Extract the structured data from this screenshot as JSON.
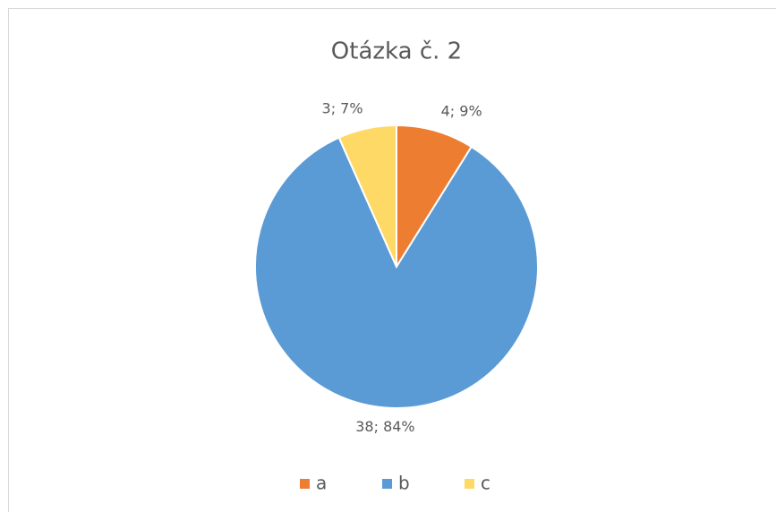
{
  "chart_data": {
    "type": "pie",
    "title": "Otázka č. 2",
    "categories": [
      "a",
      "b",
      "c"
    ],
    "values": [
      4,
      38,
      3
    ],
    "value_labels": [
      "4; 9%",
      "38; 84%",
      "3; 7%"
    ],
    "colors": [
      "#ed7d31",
      "#5b9bd5",
      "#ffd966"
    ],
    "legend": "bottom"
  }
}
